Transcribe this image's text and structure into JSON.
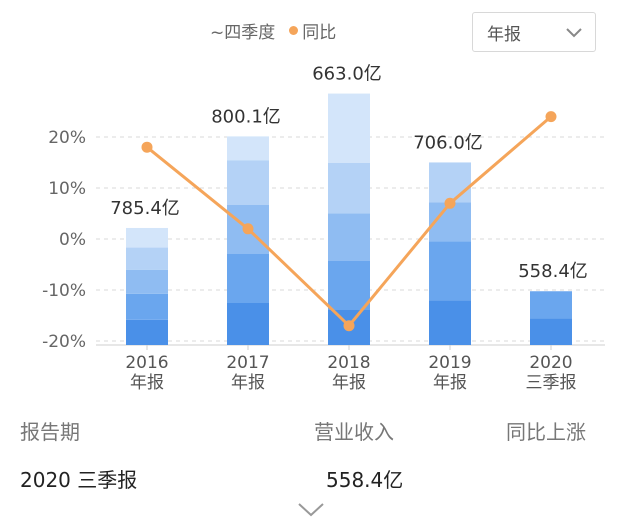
{
  "legend": {
    "partial_label": "~四季度",
    "line_label": "同比",
    "line_color": "#F5A55A"
  },
  "period_select": {
    "value": "年报",
    "icon": "chevron-down-icon"
  },
  "chart_data": {
    "type": "bar+line",
    "categories": [
      "2016\n年报",
      "2017\n年报",
      "2018\n年报",
      "2019\n年报",
      "2020\n三季报"
    ],
    "bar_labels": [
      "785.4亿",
      "800.1亿",
      "663.0亿",
      "706.0亿",
      "558.4亿"
    ],
    "bar_values": [
      785.4,
      800.1,
      663.0,
      706.0,
      558.4
    ],
    "stacks": [
      [
        90,
        150,
        125,
        160,
        95
      ],
      [
        93,
        175,
        175,
        210,
        97
      ],
      [
        85,
        175,
        170,
        140,
        0
      ],
      [
        80,
        160,
        180,
        142,
        0
      ],
      [
        70,
        85,
        248,
        0,
        0
      ]
    ],
    "stack_colors": [
      "#4A90E8",
      "#6AA6EE",
      "#8FBCF2",
      "#B4D2F6",
      "#D3E5FA"
    ],
    "line": {
      "name": "同比",
      "values": [
        18,
        2,
        -17,
        7,
        24
      ]
    },
    "yaxis": {
      "ticks": [
        "20%",
        "10%",
        "0%",
        "-10%",
        "-20%"
      ],
      "range": [
        -21,
        25
      ]
    },
    "grid": true
  },
  "summary": {
    "headers": [
      "报告期",
      "营业收入",
      "同比上涨"
    ],
    "row": {
      "period": "2020 三季报",
      "revenue": "558.4亿",
      "change": ""
    }
  }
}
